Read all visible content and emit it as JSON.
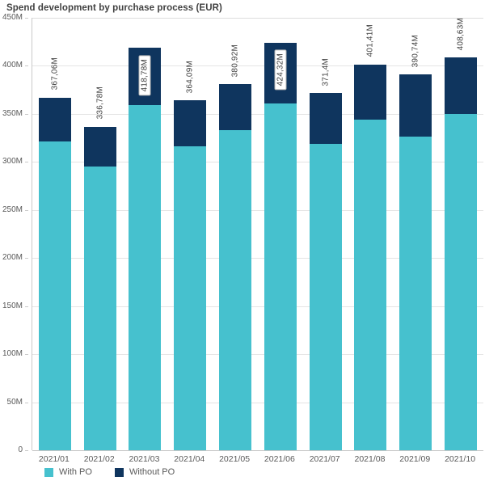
{
  "title": "Spend development by purchase process (EUR)",
  "legend": {
    "items": [
      {
        "label": "With PO",
        "color": "#46c1ce"
      },
      {
        "label": "Without PO",
        "color": "#0f355e"
      }
    ]
  },
  "colors": {
    "with_po": "#46c1ce",
    "without_po": "#0f355e",
    "grid": "#e4e4e4",
    "axis": "#c9c9c9",
    "title_text": "#404040",
    "tick_text": "#595959"
  },
  "chart_data": {
    "type": "bar",
    "stacked": true,
    "title": "Spend development by purchase process (EUR)",
    "xlabel": "",
    "ylabel": "",
    "ylim": [
      0,
      450000000
    ],
    "grid": true,
    "legend_position": "bottom-left",
    "value_unit": "EUR (millions)",
    "categories": [
      "2021/01",
      "2021/02",
      "2021/03",
      "2021/04",
      "2021/05",
      "2021/06",
      "2021/07",
      "2021/08",
      "2021/09",
      "2021/10"
    ],
    "series": [
      {
        "name": "With PO",
        "color": "#46c1ce",
        "values": [
          321,
          295,
          359,
          316,
          333,
          361,
          319,
          344,
          326,
          350
        ]
      },
      {
        "name": "Without PO",
        "color": "#0f355e",
        "values": [
          46.06,
          41.78,
          59.78,
          48.09,
          47.92,
          63.32,
          52.4,
          57.41,
          64.74,
          58.63
        ]
      }
    ],
    "totals": [
      367.06,
      336.78,
      418.78,
      364.09,
      380.92,
      424.32,
      371.4,
      401.41,
      390.74,
      408.63
    ],
    "total_labels": [
      "367,06M",
      "336,78M",
      "418,78M",
      "364,09M",
      "380,92M",
      "424,32M",
      "371,4M",
      "401,41M",
      "390,74M",
      "408,63M"
    ],
    "boxed_label_indices": [
      2,
      5
    ],
    "y_ticks": [
      {
        "value": 0,
        "label": "0"
      },
      {
        "value": 50,
        "label": "50M"
      },
      {
        "value": 100,
        "label": "100M"
      },
      {
        "value": 150,
        "label": "150M"
      },
      {
        "value": 200,
        "label": "200M"
      },
      {
        "value": 250,
        "label": "250M"
      },
      {
        "value": 300,
        "label": "300M"
      },
      {
        "value": 350,
        "label": "350M"
      },
      {
        "value": 400,
        "label": "400M"
      },
      {
        "value": 450,
        "label": "450M"
      }
    ],
    "y_max": 450
  }
}
